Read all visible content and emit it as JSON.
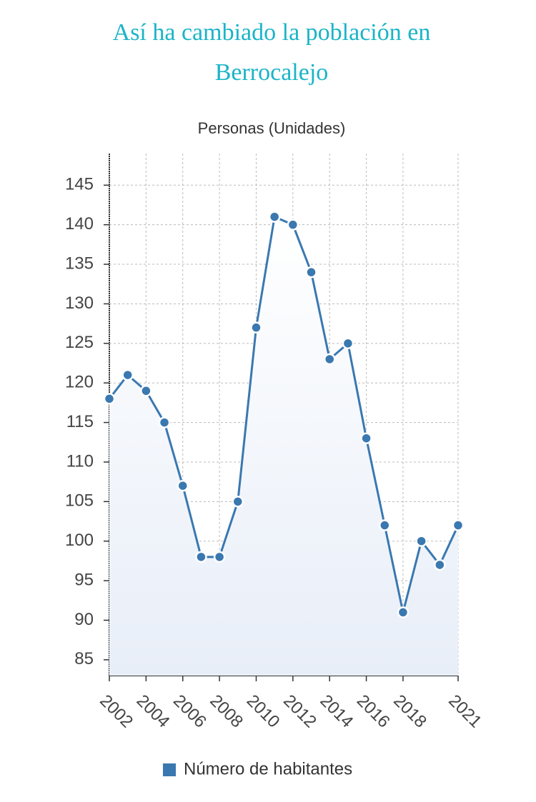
{
  "chart_data": {
    "type": "line",
    "title": "Así ha cambiado la población en Berrocalejo",
    "y_label": "Personas (Unidades)",
    "x": [
      2002,
      2003,
      2004,
      2005,
      2006,
      2007,
      2008,
      2009,
      2010,
      2011,
      2012,
      2013,
      2014,
      2015,
      2016,
      2017,
      2018,
      2019,
      2020,
      2021
    ],
    "series": [
      {
        "name": "Número de habitantes",
        "color": "#3a78b0",
        "values": [
          118,
          121,
          119,
          115,
          107,
          98,
          98,
          105,
          127,
          141,
          140,
          134,
          123,
          125,
          113,
          102,
          91,
          100,
          97,
          102
        ]
      }
    ],
    "xlim": [
      2002,
      2021
    ],
    "xticks": [
      2002,
      2004,
      2006,
      2008,
      2010,
      2012,
      2014,
      2016,
      2018,
      2021
    ],
    "ylim": [
      83,
      149
    ],
    "yticks": [
      85,
      90,
      95,
      100,
      105,
      110,
      115,
      120,
      125,
      130,
      135,
      140,
      145
    ],
    "grid": true,
    "legend": "bottom"
  }
}
